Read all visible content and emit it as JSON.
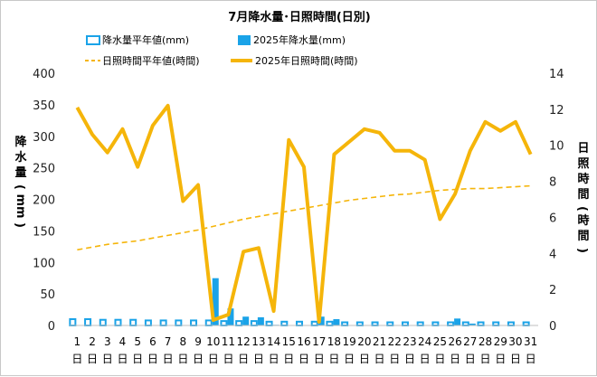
{
  "chart_data": {
    "type": "bar+line",
    "title": "7月降水量･日照時間(日別)",
    "categories": [
      "1",
      "2",
      "3",
      "4",
      "5",
      "6",
      "7",
      "8",
      "9",
      "10",
      "11",
      "12",
      "13",
      "14",
      "15",
      "16",
      "17",
      "18",
      "19",
      "20",
      "21",
      "22",
      "23",
      "24",
      "25",
      "26",
      "27",
      "28",
      "29",
      "30",
      "31"
    ],
    "category_suffix": "日",
    "ylabel_left": [
      "降",
      "水",
      "量",
      "(",
      "mm",
      ")"
    ],
    "ylabel_right": [
      "日",
      "照",
      "時",
      "間",
      "(",
      "時",
      "間",
      ")"
    ],
    "y_left": {
      "min": 0,
      "max": 400,
      "ticks": [
        0,
        50,
        100,
        150,
        200,
        250,
        300,
        350,
        400
      ]
    },
    "y_right": {
      "min": 0,
      "max": 14,
      "ticks": [
        0,
        2,
        4,
        6,
        8,
        10,
        12,
        14
      ]
    },
    "legend": {
      "precip_normal": "降水量平年値(mm)",
      "precip_2025": "2025年降水量(mm)",
      "sun_normal": "日照時間平年値(時間)",
      "sun_2025": "2025年日照時間(時間)"
    },
    "colors": {
      "bar_2025": "#1aa3e8",
      "bar_normal_border": "#1aa3e8",
      "line": "#f5b50a"
    },
    "precip_normal": [
      10,
      10,
      9,
      9,
      9,
      8,
      8,
      8,
      8,
      8,
      7,
      7,
      7,
      6,
      6,
      6,
      6,
      6,
      5,
      5,
      5,
      5,
      5,
      5,
      5,
      5,
      5,
      5,
      5,
      5,
      5
    ],
    "precip_2025": [
      0,
      0,
      0,
      0,
      0,
      0,
      0,
      0,
      0,
      75,
      27,
      14,
      13,
      1,
      0,
      0,
      14,
      10,
      0,
      0,
      0,
      0,
      0,
      0,
      0,
      11,
      3,
      0,
      0,
      0,
      0
    ],
    "sun_normal": [
      4.2,
      4.35,
      4.5,
      4.6,
      4.7,
      4.85,
      5.0,
      5.15,
      5.3,
      5.5,
      5.7,
      5.9,
      6.05,
      6.2,
      6.35,
      6.5,
      6.65,
      6.8,
      6.95,
      7.05,
      7.15,
      7.25,
      7.3,
      7.4,
      7.5,
      7.55,
      7.6,
      7.6,
      7.65,
      7.7,
      7.75
    ],
    "sun_2025": [
      12.1,
      10.6,
      9.6,
      10.9,
      8.8,
      11.1,
      12.2,
      6.9,
      7.8,
      0.3,
      0.6,
      4.1,
      4.3,
      0.8,
      10.3,
      8.8,
      0.2,
      9.5,
      10.2,
      10.9,
      10.7,
      9.7,
      9.7,
      9.2,
      5.9,
      7.3,
      9.7,
      11.3,
      10.8,
      11.3,
      9.5
    ]
  }
}
